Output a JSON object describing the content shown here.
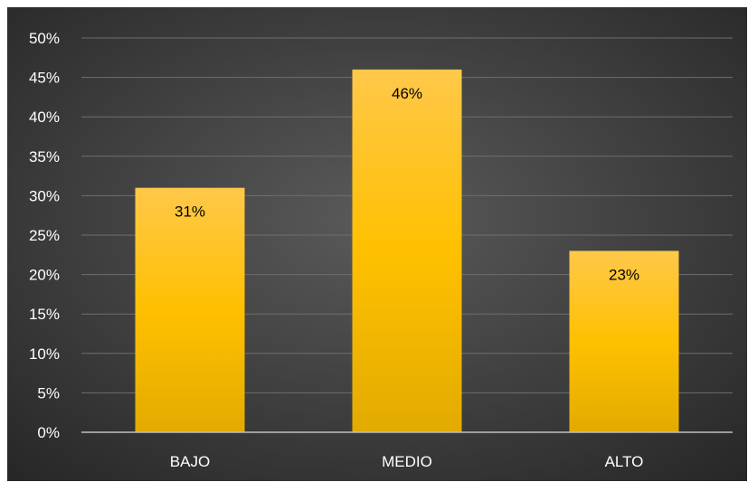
{
  "chart_data": {
    "type": "bar",
    "categories": [
      "BAJO",
      "MEDIO",
      "ALTO"
    ],
    "values": [
      0.31,
      0.46,
      0.23
    ],
    "data_labels": [
      "31%",
      "46%",
      "23%"
    ],
    "ylim": [
      0,
      0.5
    ],
    "y_ticks": [
      0,
      0.05,
      0.1,
      0.15,
      0.2,
      0.25,
      0.3,
      0.35,
      0.4,
      0.45,
      0.5
    ],
    "y_tick_labels": [
      "0%",
      "5%",
      "10%",
      "15%",
      "20%",
      "25%",
      "30%",
      "35%",
      "40%",
      "45%",
      "50%"
    ],
    "grid": true,
    "legend": "none",
    "colors": {
      "bar_top": "#FFC84A",
      "bar_mid": "#FFC000",
      "bar_bottom": "#E2AB00",
      "background_center": "#5A5A5A",
      "background_edge": "#262626",
      "text": "#FFFFFF",
      "data_label": "#000000",
      "gridline": "#6E6E6E",
      "axis_line": "#BFBFBF"
    }
  }
}
